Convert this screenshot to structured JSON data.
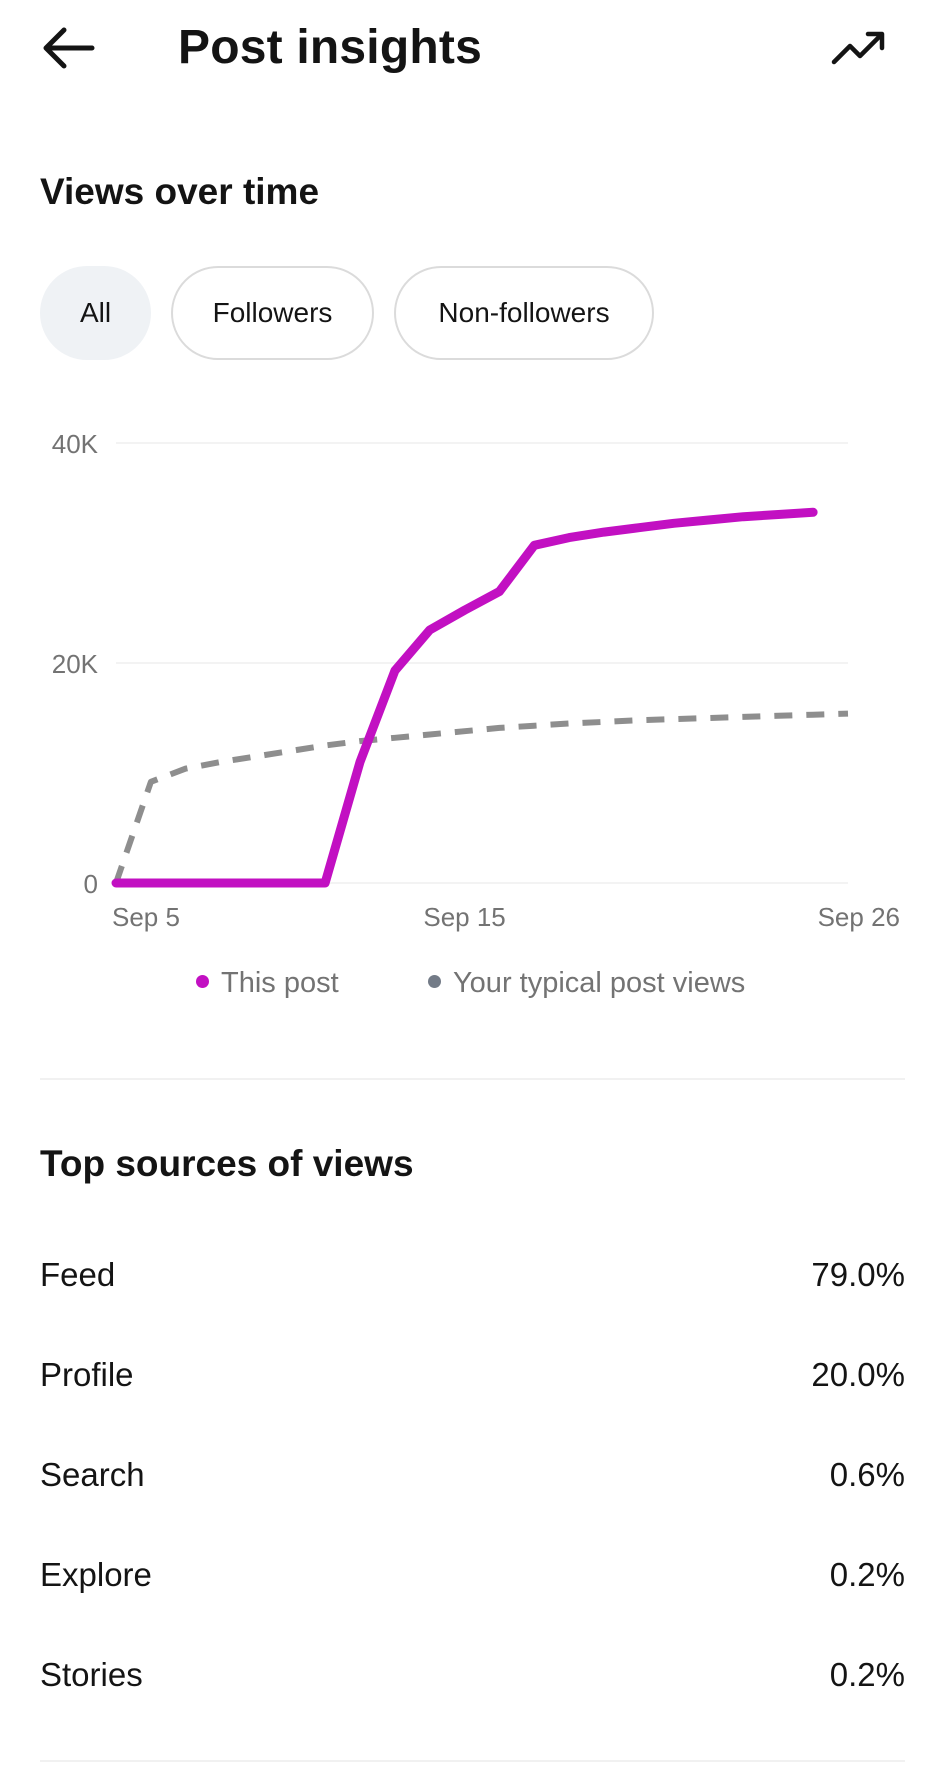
{
  "header": {
    "title": "Post insights",
    "back_icon": "arrow-left-icon",
    "trend_icon": "trending-up-icon"
  },
  "views_section": {
    "title": "Views over time",
    "filters": [
      {
        "label": "All",
        "selected": true
      },
      {
        "label": "Followers",
        "selected": false
      },
      {
        "label": "Non-followers",
        "selected": false
      }
    ]
  },
  "chart_data": {
    "type": "line",
    "title": "",
    "xlabel": "",
    "ylabel": "",
    "x_ticks": [
      "Sep 5",
      "Sep 15",
      "Sep 26"
    ],
    "y_ticks": [
      "0",
      "20K",
      "40K"
    ],
    "ylim": [
      0,
      40000
    ],
    "grid": true,
    "legend_position": "bottom",
    "series": [
      {
        "name": "This post",
        "color": "#c210c2",
        "style": "solid",
        "points": [
          [
            "Sep 5",
            0
          ],
          [
            "Sep 6",
            0
          ],
          [
            "Sep 7",
            0
          ],
          [
            "Sep 8",
            0
          ],
          [
            "Sep 9",
            0
          ],
          [
            "Sep 10",
            0
          ],
          [
            "Sep 11",
            0
          ],
          [
            "Sep 12",
            11000
          ],
          [
            "Sep 13",
            19300
          ],
          [
            "Sep 14",
            23000
          ],
          [
            "Sep 15",
            24800
          ],
          [
            "Sep 16",
            26500
          ],
          [
            "Sep 17",
            30700
          ],
          [
            "Sep 18",
            31400
          ],
          [
            "Sep 19",
            31900
          ],
          [
            "Sep 20",
            32300
          ],
          [
            "Sep 21",
            32700
          ],
          [
            "Sep 22",
            33000
          ],
          [
            "Sep 23",
            33300
          ],
          [
            "Sep 24",
            33500
          ],
          [
            "Sep 25",
            33700
          ]
        ]
      },
      {
        "name": "Your typical post views",
        "color": "#8e8e8e",
        "legend_color": "#737b87",
        "style": "dashed",
        "points": [
          [
            "Sep 5",
            0
          ],
          [
            "Sep 6",
            9200
          ],
          [
            "Sep 7",
            10400
          ],
          [
            "Sep 8",
            11000
          ],
          [
            "Sep 9",
            11500
          ],
          [
            "Sep 10",
            12000
          ],
          [
            "Sep 11",
            12500
          ],
          [
            "Sep 12",
            12900
          ],
          [
            "Sep 13",
            13200
          ],
          [
            "Sep 14",
            13500
          ],
          [
            "Sep 15",
            13800
          ],
          [
            "Sep 16",
            14100
          ],
          [
            "Sep 17",
            14300
          ],
          [
            "Sep 18",
            14500
          ],
          [
            "Sep 19",
            14650
          ],
          [
            "Sep 20",
            14800
          ],
          [
            "Sep 21",
            14900
          ],
          [
            "Sep 22",
            15000
          ],
          [
            "Sep 23",
            15100
          ],
          [
            "Sep 24",
            15200
          ],
          [
            "Sep 25",
            15300
          ],
          [
            "Sep 26",
            15400
          ]
        ]
      }
    ]
  },
  "sources_section": {
    "title": "Top sources of views",
    "rows": [
      {
        "label": "Feed",
        "value": "79.0%"
      },
      {
        "label": "Profile",
        "value": "20.0%"
      },
      {
        "label": "Search",
        "value": "0.6%"
      },
      {
        "label": "Explore",
        "value": "0.2%"
      },
      {
        "label": "Stories",
        "value": "0.2%"
      }
    ]
  }
}
